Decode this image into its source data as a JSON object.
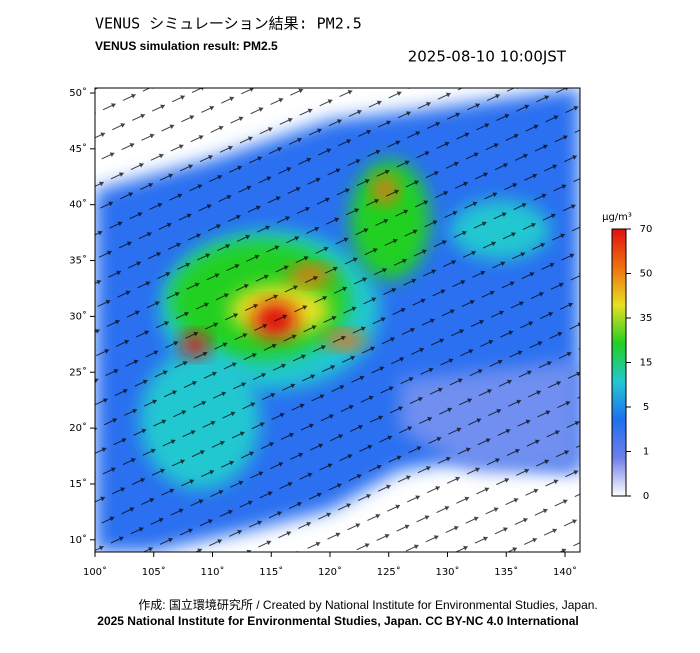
{
  "header": {
    "title_jp": "VENUS シミュレーション結果: PM2.5",
    "title_en": "VENUS simulation result: PM2.5",
    "timestamp": "2025-08-10 10:00JST"
  },
  "map": {
    "lon_ticks": [
      {
        "value": 100,
        "label": "100˚"
      },
      {
        "value": 105,
        "label": "105˚"
      },
      {
        "value": 110,
        "label": "110˚"
      },
      {
        "value": 115,
        "label": "115˚"
      },
      {
        "value": 120,
        "label": "120˚"
      },
      {
        "value": 125,
        "label": "125˚"
      },
      {
        "value": 130,
        "label": "130˚"
      },
      {
        "value": 135,
        "label": "135˚"
      },
      {
        "value": 140,
        "label": "140˚"
      }
    ],
    "lat_ticks": [
      {
        "value": 50,
        "label": "50˚"
      },
      {
        "value": 45,
        "label": "45˚"
      },
      {
        "value": 40,
        "label": "40˚"
      },
      {
        "value": 35,
        "label": "35˚"
      },
      {
        "value": 30,
        "label": "30˚"
      },
      {
        "value": 25,
        "label": "25˚"
      },
      {
        "value": 20,
        "label": "20˚"
      },
      {
        "value": 15,
        "label": "15˚"
      },
      {
        "value": 10,
        "label": "10˚"
      }
    ]
  },
  "colorbar": {
    "unit": "μg/m³",
    "ticks": [
      0,
      1,
      5,
      15,
      35,
      50,
      70
    ],
    "colors": [
      "#ffffff",
      "#6f7fe8",
      "#1f6ff0",
      "#22c8d0",
      "#22d022",
      "#e8e020",
      "#f07010",
      "#e01010"
    ]
  },
  "footer": {
    "line1": "作成: 国立環境研究所 / Created by National Institute for Environmental Studies, Japan.",
    "line2": "2025 National Institute for Environmental Studies, Japan. CC BY-NC 4.0 International"
  }
}
